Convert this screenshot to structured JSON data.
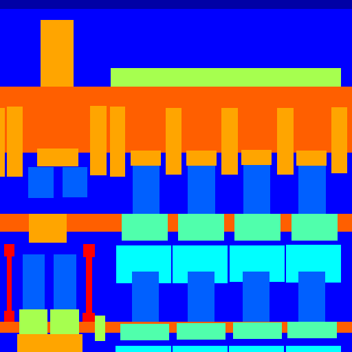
{
  "palette": {
    "background": "#0000ff",
    "top_bar": "#0000a6",
    "orange": "#ffa500",
    "orange_red": "#ff5f00",
    "lime": "#a6ff4f",
    "mid_blue": "#0060ff",
    "aqua_green": "#50ffac",
    "cyan": "#00ffff",
    "red": "#ff0000"
  }
}
